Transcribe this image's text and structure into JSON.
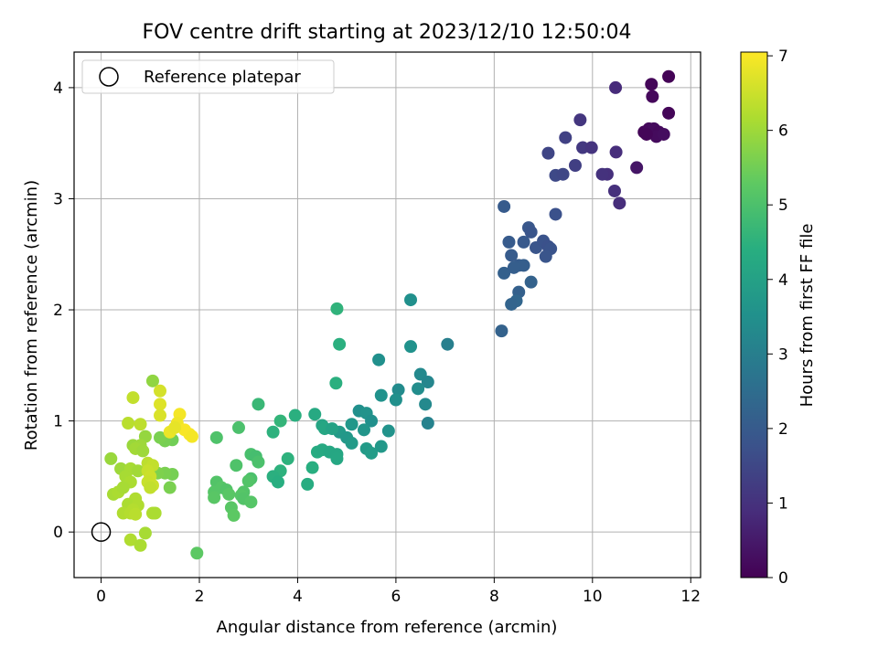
{
  "chart_data": {
    "type": "scatter",
    "title": "FOV centre drift starting at 2023/12/10 12:50:04",
    "xlabel": "Angular distance from reference (arcmin)",
    "ylabel": "Rotation from reference (arcmin)",
    "xlim": [
      -0.55,
      12.2
    ],
    "ylim": [
      -0.41,
      4.32
    ],
    "xticks": [
      0,
      2,
      4,
      6,
      8,
      10,
      12
    ],
    "yticks": [
      0,
      1,
      2,
      3,
      4
    ],
    "grid": true,
    "legend": {
      "placement": "top-left",
      "entries": [
        {
          "label": "Reference platepar",
          "marker": "open-circle"
        }
      ]
    },
    "reference_point": {
      "x": 0,
      "y": 0
    },
    "colorbar": {
      "label": "Hours from first FF file",
      "colormap": "viridis",
      "range": [
        0,
        7.05
      ],
      "ticks": [
        0,
        1,
        2,
        3,
        4,
        5,
        6,
        7
      ]
    },
    "points": [
      {
        "x": 11.55,
        "y": 4.1,
        "c": 0.05
      },
      {
        "x": 11.2,
        "y": 4.03,
        "c": 0.1
      },
      {
        "x": 11.22,
        "y": 3.92,
        "c": 0.15
      },
      {
        "x": 11.55,
        "y": 3.77,
        "c": 0.1
      },
      {
        "x": 11.05,
        "y": 3.6,
        "c": 0.1
      },
      {
        "x": 11.15,
        "y": 3.63,
        "c": 0.15
      },
      {
        "x": 11.25,
        "y": 3.63,
        "c": 0.2
      },
      {
        "x": 11.35,
        "y": 3.6,
        "c": 0.15
      },
      {
        "x": 11.3,
        "y": 3.56,
        "c": 0.2
      },
      {
        "x": 11.45,
        "y": 3.58,
        "c": 0.25
      },
      {
        "x": 11.1,
        "y": 3.58,
        "c": 0.1
      },
      {
        "x": 10.9,
        "y": 3.28,
        "c": 0.4
      },
      {
        "x": 10.47,
        "y": 4.0,
        "c": 0.85
      },
      {
        "x": 10.48,
        "y": 3.42,
        "c": 0.9
      },
      {
        "x": 10.3,
        "y": 3.22,
        "c": 0.95
      },
      {
        "x": 10.2,
        "y": 3.22,
        "c": 1.0
      },
      {
        "x": 10.45,
        "y": 3.07,
        "c": 0.95
      },
      {
        "x": 10.55,
        "y": 2.96,
        "c": 0.9
      },
      {
        "x": 9.75,
        "y": 3.71,
        "c": 1.1
      },
      {
        "x": 9.8,
        "y": 3.46,
        "c": 1.15
      },
      {
        "x": 9.98,
        "y": 3.46,
        "c": 1.05
      },
      {
        "x": 9.45,
        "y": 3.55,
        "c": 1.35
      },
      {
        "x": 9.1,
        "y": 3.41,
        "c": 1.45
      },
      {
        "x": 9.65,
        "y": 3.3,
        "c": 1.3
      },
      {
        "x": 9.25,
        "y": 3.21,
        "c": 1.55
      },
      {
        "x": 9.4,
        "y": 3.22,
        "c": 1.5
      },
      {
        "x": 9.25,
        "y": 2.86,
        "c": 1.75
      },
      {
        "x": 8.2,
        "y": 2.93,
        "c": 2.0
      },
      {
        "x": 8.7,
        "y": 2.74,
        "c": 1.9
      },
      {
        "x": 8.75,
        "y": 2.7,
        "c": 1.85
      },
      {
        "x": 8.3,
        "y": 2.61,
        "c": 2.0
      },
      {
        "x": 8.6,
        "y": 2.61,
        "c": 1.95
      },
      {
        "x": 8.85,
        "y": 2.56,
        "c": 1.85
      },
      {
        "x": 9.0,
        "y": 2.62,
        "c": 1.8
      },
      {
        "x": 9.1,
        "y": 2.57,
        "c": 1.75
      },
      {
        "x": 9.15,
        "y": 2.55,
        "c": 1.8
      },
      {
        "x": 9.05,
        "y": 2.48,
        "c": 1.85
      },
      {
        "x": 8.35,
        "y": 2.49,
        "c": 2.0
      },
      {
        "x": 8.5,
        "y": 2.4,
        "c": 2.05
      },
      {
        "x": 8.6,
        "y": 2.4,
        "c": 2.1
      },
      {
        "x": 8.2,
        "y": 2.33,
        "c": 2.15
      },
      {
        "x": 8.4,
        "y": 2.38,
        "c": 2.1
      },
      {
        "x": 8.75,
        "y": 2.25,
        "c": 2.2
      },
      {
        "x": 8.5,
        "y": 2.16,
        "c": 2.15
      },
      {
        "x": 8.45,
        "y": 2.08,
        "c": 2.3
      },
      {
        "x": 8.35,
        "y": 2.05,
        "c": 2.25
      },
      {
        "x": 8.15,
        "y": 1.81,
        "c": 2.2
      },
      {
        "x": 6.3,
        "y": 2.09,
        "c": 3.5
      },
      {
        "x": 7.05,
        "y": 1.69,
        "c": 3.0
      },
      {
        "x": 6.3,
        "y": 1.67,
        "c": 3.55
      },
      {
        "x": 5.65,
        "y": 1.55,
        "c": 3.5
      },
      {
        "x": 6.5,
        "y": 1.42,
        "c": 3.3
      },
      {
        "x": 6.65,
        "y": 1.35,
        "c": 3.2
      },
      {
        "x": 6.45,
        "y": 1.29,
        "c": 3.4
      },
      {
        "x": 6.05,
        "y": 1.28,
        "c": 3.35
      },
      {
        "x": 5.7,
        "y": 1.23,
        "c": 3.55
      },
      {
        "x": 6.0,
        "y": 1.19,
        "c": 3.5
      },
      {
        "x": 6.6,
        "y": 1.15,
        "c": 3.3
      },
      {
        "x": 6.65,
        "y": 0.98,
        "c": 3.1
      },
      {
        "x": 5.25,
        "y": 1.09,
        "c": 3.5
      },
      {
        "x": 5.4,
        "y": 1.07,
        "c": 3.6
      },
      {
        "x": 5.5,
        "y": 1.0,
        "c": 3.5
      },
      {
        "x": 5.1,
        "y": 0.97,
        "c": 3.7
      },
      {
        "x": 5.35,
        "y": 0.92,
        "c": 3.65
      },
      {
        "x": 5.85,
        "y": 0.91,
        "c": 3.6
      },
      {
        "x": 4.85,
        "y": 0.9,
        "c": 3.8
      },
      {
        "x": 5.0,
        "y": 0.85,
        "c": 3.75
      },
      {
        "x": 5.1,
        "y": 0.8,
        "c": 3.8
      },
      {
        "x": 5.7,
        "y": 0.77,
        "c": 3.75
      },
      {
        "x": 5.4,
        "y": 0.75,
        "c": 3.8
      },
      {
        "x": 5.5,
        "y": 0.71,
        "c": 3.85
      },
      {
        "x": 4.8,
        "y": 2.01,
        "c": 4.55
      },
      {
        "x": 4.85,
        "y": 1.69,
        "c": 4.45
      },
      {
        "x": 4.78,
        "y": 1.34,
        "c": 4.45
      },
      {
        "x": 4.35,
        "y": 1.06,
        "c": 4.25
      },
      {
        "x": 4.5,
        "y": 0.96,
        "c": 4.1
      },
      {
        "x": 4.55,
        "y": 0.93,
        "c": 4.15
      },
      {
        "x": 4.7,
        "y": 0.93,
        "c": 4.05
      },
      {
        "x": 3.95,
        "y": 1.05,
        "c": 4.45
      },
      {
        "x": 3.65,
        "y": 1.0,
        "c": 4.6
      },
      {
        "x": 3.5,
        "y": 0.9,
        "c": 4.5
      },
      {
        "x": 3.2,
        "y": 1.15,
        "c": 4.7
      },
      {
        "x": 4.4,
        "y": 0.72,
        "c": 4.3
      },
      {
        "x": 4.5,
        "y": 0.74,
        "c": 4.25
      },
      {
        "x": 4.65,
        "y": 0.72,
        "c": 4.2
      },
      {
        "x": 4.8,
        "y": 0.7,
        "c": 4.15
      },
      {
        "x": 4.8,
        "y": 0.66,
        "c": 4.2
      },
      {
        "x": 3.8,
        "y": 0.66,
        "c": 4.5
      },
      {
        "x": 4.3,
        "y": 0.58,
        "c": 4.4
      },
      {
        "x": 3.65,
        "y": 0.55,
        "c": 4.5
      },
      {
        "x": 3.5,
        "y": 0.5,
        "c": 4.45
      },
      {
        "x": 3.6,
        "y": 0.45,
        "c": 4.4
      },
      {
        "x": 4.2,
        "y": 0.43,
        "c": 4.35
      },
      {
        "x": 2.8,
        "y": 0.94,
        "c": 5.0
      },
      {
        "x": 2.35,
        "y": 0.85,
        "c": 5.05
      },
      {
        "x": 3.05,
        "y": 0.7,
        "c": 4.95
      },
      {
        "x": 3.15,
        "y": 0.68,
        "c": 4.9
      },
      {
        "x": 3.2,
        "y": 0.63,
        "c": 5.0
      },
      {
        "x": 2.75,
        "y": 0.6,
        "c": 5.05
      },
      {
        "x": 3.05,
        "y": 0.48,
        "c": 5.0
      },
      {
        "x": 3.0,
        "y": 0.46,
        "c": 5.1
      },
      {
        "x": 2.35,
        "y": 0.45,
        "c": 5.1
      },
      {
        "x": 2.45,
        "y": 0.4,
        "c": 5.15
      },
      {
        "x": 2.55,
        "y": 0.38,
        "c": 5.1
      },
      {
        "x": 2.3,
        "y": 0.36,
        "c": 5.15
      },
      {
        "x": 2.6,
        "y": 0.34,
        "c": 5.2
      },
      {
        "x": 2.9,
        "y": 0.36,
        "c": 5.1
      },
      {
        "x": 2.85,
        "y": 0.33,
        "c": 5.15
      },
      {
        "x": 2.9,
        "y": 0.3,
        "c": 5.1
      },
      {
        "x": 2.3,
        "y": 0.31,
        "c": 5.2
      },
      {
        "x": 3.05,
        "y": 0.27,
        "c": 5.15
      },
      {
        "x": 2.65,
        "y": 0.22,
        "c": 5.2
      },
      {
        "x": 2.7,
        "y": 0.15,
        "c": 5.25
      },
      {
        "x": 1.95,
        "y": -0.19,
        "c": 5.25
      },
      {
        "x": 1.45,
        "y": 0.83,
        "c": 5.5
      },
      {
        "x": 1.3,
        "y": 0.82,
        "c": 5.55
      },
      {
        "x": 1.2,
        "y": 0.85,
        "c": 5.6
      },
      {
        "x": 1.45,
        "y": 0.52,
        "c": 5.55
      },
      {
        "x": 1.3,
        "y": 0.53,
        "c": 5.6
      },
      {
        "x": 1.15,
        "y": 0.53,
        "c": 5.65
      },
      {
        "x": 1.4,
        "y": 0.4,
        "c": 5.6
      },
      {
        "x": 1.05,
        "y": 1.36,
        "c": 5.85
      },
      {
        "x": 0.2,
        "y": 0.66,
        "c": 5.95
      },
      {
        "x": 0.9,
        "y": 0.86,
        "c": 5.9
      },
      {
        "x": 0.65,
        "y": 0.78,
        "c": 5.95
      },
      {
        "x": 0.8,
        "y": 0.78,
        "c": 6.0
      },
      {
        "x": 0.7,
        "y": 0.75,
        "c": 6.05
      },
      {
        "x": 0.85,
        "y": 0.73,
        "c": 6.0
      },
      {
        "x": 0.4,
        "y": 0.57,
        "c": 6.0
      },
      {
        "x": 0.6,
        "y": 0.57,
        "c": 6.1
      },
      {
        "x": 0.75,
        "y": 0.55,
        "c": 6.05
      },
      {
        "x": 0.5,
        "y": 0.5,
        "c": 6.1
      },
      {
        "x": 0.6,
        "y": 0.45,
        "c": 6.15
      },
      {
        "x": 0.25,
        "y": 0.34,
        "c": 6.1
      },
      {
        "x": 0.35,
        "y": 0.36,
        "c": 6.15
      },
      {
        "x": 0.45,
        "y": 0.4,
        "c": 6.1
      },
      {
        "x": 0.7,
        "y": 0.3,
        "c": 6.2
      },
      {
        "x": 0.55,
        "y": 0.25,
        "c": 6.15
      },
      {
        "x": 0.75,
        "y": 0.24,
        "c": 6.2
      },
      {
        "x": 0.65,
        "y": 0.2,
        "c": 6.25
      },
      {
        "x": 0.45,
        "y": 0.17,
        "c": 6.2
      },
      {
        "x": 0.6,
        "y": 0.17,
        "c": 6.25
      },
      {
        "x": 0.7,
        "y": 0.16,
        "c": 6.3
      },
      {
        "x": 1.05,
        "y": 0.17,
        "c": 6.2
      },
      {
        "x": 1.1,
        "y": 0.17,
        "c": 6.15
      },
      {
        "x": 0.9,
        "y": -0.01,
        "c": 6.1
      },
      {
        "x": 0.6,
        "y": -0.07,
        "c": 6.2
      },
      {
        "x": 0.8,
        "y": -0.12,
        "c": 6.15
      },
      {
        "x": 0.55,
        "y": 0.98,
        "c": 6.3
      },
      {
        "x": 0.8,
        "y": 0.97,
        "c": 6.35
      },
      {
        "x": 0.65,
        "y": 1.21,
        "c": 6.4
      },
      {
        "x": 0.95,
        "y": 0.62,
        "c": 6.35
      },
      {
        "x": 1.05,
        "y": 0.6,
        "c": 6.4
      },
      {
        "x": 0.95,
        "y": 0.55,
        "c": 6.45
      },
      {
        "x": 1.0,
        "y": 0.5,
        "c": 6.5
      },
      {
        "x": 0.95,
        "y": 0.45,
        "c": 6.45
      },
      {
        "x": 1.05,
        "y": 0.42,
        "c": 6.5
      },
      {
        "x": 1.0,
        "y": 0.4,
        "c": 6.4
      },
      {
        "x": 1.2,
        "y": 1.27,
        "c": 6.6
      },
      {
        "x": 1.2,
        "y": 1.15,
        "c": 6.7
      },
      {
        "x": 1.2,
        "y": 1.05,
        "c": 6.65
      },
      {
        "x": 1.6,
        "y": 1.06,
        "c": 6.95
      },
      {
        "x": 1.55,
        "y": 0.98,
        "c": 6.9
      },
      {
        "x": 1.7,
        "y": 0.92,
        "c": 7.0
      },
      {
        "x": 1.8,
        "y": 0.88,
        "c": 7.0
      },
      {
        "x": 1.85,
        "y": 0.86,
        "c": 6.95
      },
      {
        "x": 1.4,
        "y": 0.9,
        "c": 6.85
      },
      {
        "x": 1.5,
        "y": 0.94,
        "c": 6.8
      }
    ]
  }
}
